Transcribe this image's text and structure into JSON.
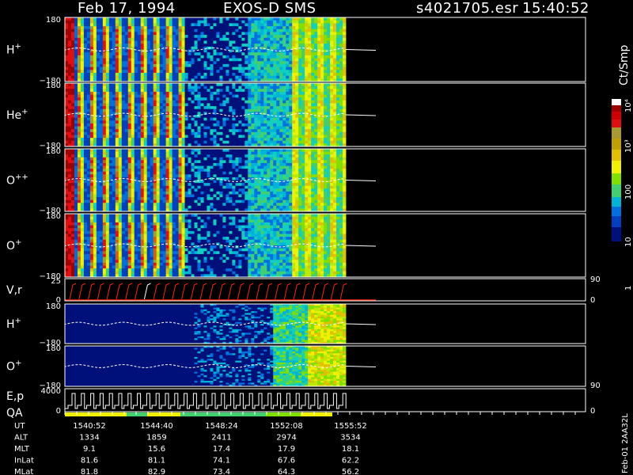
{
  "header": {
    "date": "Feb 17, 1994",
    "instrument": "EXOS-D SMS",
    "file": "s4021705.esr",
    "time": "15:40:52"
  },
  "colorbar": {
    "unit": "Ct/Smp",
    "labels": [
      "1",
      "10",
      "100",
      "10³",
      "10⁴"
    ]
  },
  "chart_data": {
    "type": "heatmap",
    "panels": [
      {
        "label": "H",
        "sup": "+",
        "ytop": "180",
        "ybot": "−180"
      },
      {
        "label": "He",
        "sup": "+",
        "ytop": "180",
        "ybot": "−180"
      },
      {
        "label": "O",
        "sup": "++",
        "ytop": "180",
        "ybot": "−180"
      },
      {
        "label": "O",
        "sup": "+",
        "ytop": "180",
        "ybot": "−180"
      },
      {
        "label": "V,r",
        "sup": "",
        "ytop": "25",
        "ybot": "0",
        "right_top": "90",
        "right_bot": "0"
      },
      {
        "label": "H",
        "sup": "+",
        "ytop": "180",
        "ybot": "−180"
      },
      {
        "label": "O",
        "sup": "+",
        "ytop": "180",
        "ybot": "−180",
        "right_bot": "90"
      },
      {
        "label": "E,p",
        "sup": "",
        "label2": "QA",
        "ytop": "4000",
        "ybot": "0",
        "right_bot": "0"
      }
    ],
    "x_ticks": [
      "1540:52",
      "1544:40",
      "1548:24",
      "1552:08",
      "1555:52"
    ],
    "ephemeris": [
      {
        "name": "UT",
        "values": [
          "1540:52",
          "1544:40",
          "1548:24",
          "1552:08",
          "1555:52"
        ]
      },
      {
        "name": "ALT",
        "values": [
          "1334",
          "1859",
          "2411",
          "2974",
          "3534"
        ]
      },
      {
        "name": "MLT",
        "values": [
          "9.1",
          "15.6",
          "17.4",
          "17.9",
          "18.1"
        ]
      },
      {
        "name": "InLat",
        "values": [
          "81.6",
          "81.1",
          "74.1",
          "67.6",
          "62.2"
        ]
      },
      {
        "name": "MLat",
        "values": [
          "81.8",
          "82.9",
          "73.4",
          "64.3",
          "56.2"
        ]
      }
    ]
  },
  "footer": {
    "side_label": "Feb-01 2AA32L"
  }
}
